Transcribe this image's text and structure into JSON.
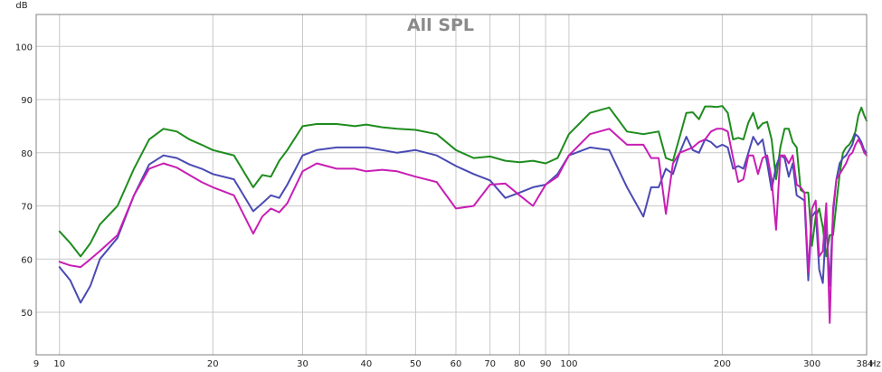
{
  "chart_data": {
    "type": "line",
    "title": "All SPL",
    "ylabel": "dB",
    "xlabel": "Hz",
    "x_scale": "log",
    "xlim": [
      9,
      384
    ],
    "ylim": [
      42,
      106
    ],
    "grid": true,
    "x_ticks": [
      9,
      10,
      20,
      30,
      40,
      50,
      60,
      70,
      80,
      90,
      100,
      200,
      300,
      384
    ],
    "x_tick_labels": [
      "9",
      "10",
      "20",
      "30",
      "40",
      "50",
      "60",
      "70",
      "80",
      "90",
      "100",
      "200",
      "300",
      "384"
    ],
    "x_minor_ticks": [
      9,
      10,
      20,
      30,
      40,
      50,
      60,
      70,
      80,
      90,
      100,
      200,
      300
    ],
    "y_ticks": [
      50,
      60,
      70,
      80,
      90,
      100
    ],
    "y_tick_labels": [
      "50",
      "60",
      "70",
      "80",
      "90",
      "100"
    ],
    "colors": {
      "grid": "#c8c8c8",
      "axis": "#808080",
      "background": "#ffffff"
    },
    "series": [
      {
        "color": "#1e8c1e",
        "x": [
          10,
          10.5,
          11,
          11.5,
          12,
          13,
          14,
          15,
          16,
          17,
          18,
          19,
          20,
          22,
          24,
          25,
          26,
          27,
          28,
          30,
          32,
          35,
          38,
          40,
          43,
          46,
          50,
          55,
          60,
          65,
          70,
          75,
          80,
          85,
          90,
          95,
          100,
          110,
          120,
          130,
          140,
          150,
          155,
          160,
          165,
          170,
          175,
          180,
          185,
          190,
          195,
          200,
          205,
          210,
          215,
          220,
          225,
          230,
          235,
          240,
          245,
          250,
          255,
          260,
          265,
          270,
          275,
          280,
          285,
          290,
          295,
          300,
          305,
          310,
          315,
          320,
          325,
          330,
          335,
          340,
          345,
          350,
          355,
          360,
          365,
          370,
          375,
          380,
          384
        ],
        "y": [
          65.2,
          63,
          60.5,
          63,
          66.5,
          70,
          77,
          82.5,
          84.5,
          84,
          82.5,
          81.5,
          80.5,
          79.5,
          73.5,
          75.8,
          75.5,
          78.5,
          80.5,
          85,
          85.4,
          85.4,
          85,
          85.3,
          84.8,
          84.5,
          84.3,
          83.5,
          80.5,
          79,
          79.3,
          78.5,
          78.2,
          78.5,
          78,
          79,
          83.5,
          87.5,
          88.5,
          84,
          83.5,
          84,
          79,
          78.5,
          83,
          87.5,
          87.6,
          86.3,
          88.7,
          88.7,
          88.6,
          88.8,
          87.5,
          82.5,
          82.8,
          82.5,
          85.7,
          87.5,
          84.5,
          85.5,
          85.8,
          82.5,
          75,
          81,
          84.5,
          84.5,
          82,
          81,
          73,
          72.5,
          72.5,
          62.5,
          68,
          69.5,
          66,
          60.5,
          64.5,
          64.5,
          70.5,
          76,
          80,
          81,
          81.5,
          82.5,
          84,
          87,
          88.5,
          87,
          86
        ]
      },
      {
        "color": "#4a4ab4",
        "x": [
          10,
          10.5,
          11,
          11.5,
          12,
          13,
          14,
          15,
          16,
          17,
          18,
          19,
          20,
          22,
          24,
          25,
          26,
          27,
          28,
          30,
          32,
          35,
          38,
          40,
          43,
          46,
          50,
          55,
          60,
          65,
          70,
          75,
          80,
          85,
          90,
          95,
          100,
          110,
          120,
          130,
          140,
          145,
          150,
          155,
          160,
          165,
          170,
          175,
          180,
          185,
          190,
          195,
          200,
          205,
          210,
          215,
          220,
          225,
          230,
          235,
          240,
          245,
          250,
          255,
          260,
          265,
          270,
          275,
          280,
          285,
          290,
          295,
          300,
          305,
          310,
          315,
          320,
          325,
          330,
          335,
          340,
          345,
          350,
          355,
          360,
          365,
          370,
          375,
          380,
          384
        ],
        "y": [
          58.5,
          56,
          51.8,
          55,
          60,
          64,
          72,
          77.8,
          79.5,
          79,
          77.8,
          77,
          76,
          75,
          69,
          70.5,
          72,
          71.5,
          74,
          79.5,
          80.5,
          81,
          81,
          81,
          80.5,
          80,
          80.5,
          79.5,
          77.5,
          76,
          74.8,
          71.5,
          72.5,
          73.5,
          74,
          76,
          79.5,
          81,
          80.5,
          73.5,
          68,
          73.5,
          73.5,
          77,
          76,
          80,
          83,
          80.5,
          80,
          82.5,
          82,
          81,
          81.5,
          81,
          77,
          77.5,
          77,
          80,
          83,
          81.5,
          82.5,
          78,
          73,
          77.5,
          79.5,
          79,
          75.5,
          78,
          72,
          71.5,
          71,
          56,
          68,
          69,
          58,
          55.5,
          67,
          55,
          68.5,
          75,
          78,
          79,
          79.5,
          80.5,
          81.5,
          83.5,
          83,
          82,
          80.5,
          80
        ]
      },
      {
        "color": "#c81eb4",
        "x": [
          10,
          10.5,
          11,
          11.5,
          12,
          13,
          14,
          15,
          16,
          17,
          18,
          19,
          20,
          22,
          24,
          25,
          26,
          27,
          28,
          30,
          32,
          35,
          38,
          40,
          43,
          46,
          50,
          55,
          60,
          65,
          70,
          75,
          80,
          85,
          90,
          95,
          100,
          110,
          120,
          130,
          140,
          145,
          150,
          155,
          160,
          165,
          170,
          175,
          180,
          185,
          190,
          195,
          200,
          205,
          210,
          215,
          220,
          225,
          230,
          235,
          240,
          245,
          250,
          255,
          260,
          265,
          270,
          275,
          280,
          285,
          290,
          295,
          300,
          305,
          310,
          315,
          320,
          325,
          330,
          335,
          340,
          345,
          350,
          355,
          360,
          365,
          370,
          375,
          380,
          384
        ],
        "y": [
          59.5,
          58.8,
          58.5,
          60,
          61.5,
          64.5,
          72,
          77,
          78,
          77.2,
          75.8,
          74.5,
          73.5,
          72,
          64.8,
          68,
          69.5,
          68.8,
          70.5,
          76.5,
          78,
          77,
          77,
          76.5,
          76.8,
          76.5,
          75.5,
          74.5,
          69.5,
          70,
          74,
          74.2,
          72,
          70,
          74,
          75.5,
          79.5,
          83.5,
          84.5,
          81.5,
          81.5,
          79,
          79,
          68.5,
          78,
          80,
          80.5,
          81,
          82,
          82.5,
          84,
          84.5,
          84.5,
          84,
          79,
          74.5,
          75,
          79.5,
          79.5,
          76,
          79,
          79.5,
          75,
          65.5,
          79.5,
          79.5,
          78,
          79.5,
          74,
          73.5,
          72.5,
          57.5,
          69.5,
          71,
          60.5,
          61.5,
          70.5,
          48,
          69.5,
          75,
          76,
          77,
          78,
          79.5,
          80,
          81.5,
          82.5,
          81.5,
          80,
          79.5
        ]
      }
    ]
  }
}
